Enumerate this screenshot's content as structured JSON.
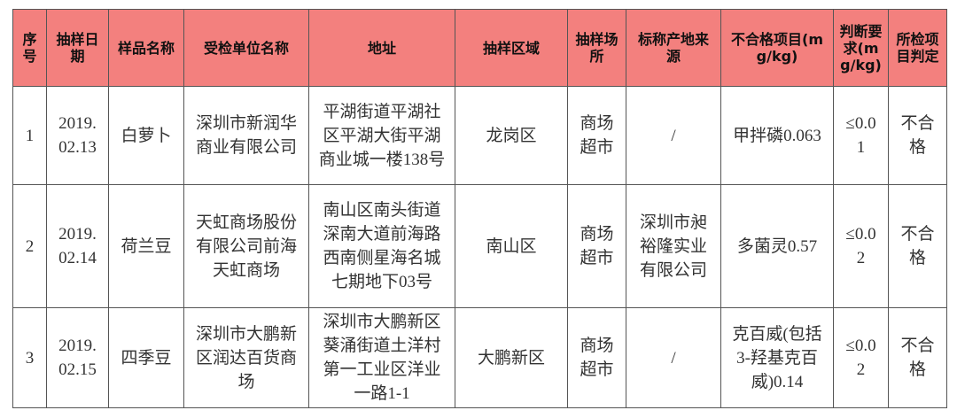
{
  "table": {
    "header": [
      "序号",
      "抽样日期",
      "样品名称",
      "受检单位名称",
      "地址",
      "抽样区域",
      "抽样场所",
      "标称产地来源",
      "不合格项目(mg/kg)",
      "判断要求(mg/kg)",
      "所检项目判定"
    ],
    "rows": [
      [
        "1",
        "2019.02.13",
        "白萝卜",
        "深圳市新润华商业有限公司",
        "平湖街道平湖社区平湖大街平湖商业城一楼138号",
        "龙岗区",
        "商场超市",
        "/",
        "甲拌磷0.063",
        "≤0.01",
        "不合格"
      ],
      [
        "2",
        "2019.02.14",
        "荷兰豆",
        "天虹商场股份有限公司前海天虹商场",
        "南山区南头街道深南大道前海路西南侧星海名城七期地下03号",
        "南山区",
        "商场超市",
        "深圳市昶裕隆实业有限公司",
        "多菌灵0.57",
        "≤0.02",
        "不合格"
      ],
      [
        "3",
        "2019.02.15",
        "四季豆",
        "深圳市大鹏新区润达百货商场",
        "深圳市大鹏新区葵涌街道土洋村第一工业区洋业一路1-1",
        "大鹏新区",
        "商场超市",
        "/",
        "克百威(包括3-羟基克百威)0.14",
        "≤0.02",
        "不合格"
      ]
    ]
  }
}
